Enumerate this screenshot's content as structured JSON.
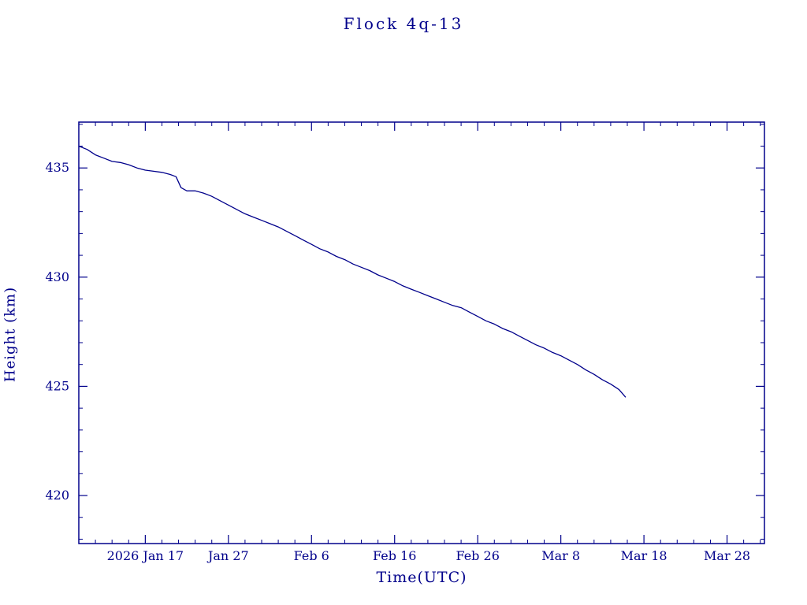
{
  "chart_data": {
    "type": "line",
    "title": "Flock 4q-13",
    "xlabel": "Time(UTC)",
    "ylabel": "Height (km)",
    "grid": false,
    "legend": "none",
    "colors": {
      "line": "#00008b",
      "text": "#00008b",
      "frame": "#00008b",
      "background": "#ffffff"
    },
    "x_axis": {
      "tick_labels": [
        "2026 Jan 17",
        "Jan 27",
        "Feb 6",
        "Feb 16",
        "Feb 26",
        "Mar 8",
        "Mar 18",
        "Mar 28"
      ],
      "tick_days": [
        8,
        18,
        28,
        38,
        48,
        58,
        68,
        78
      ],
      "domain_days": [
        0,
        82.5
      ],
      "x_day0_date": "2026 Jan 9",
      "minor_tick_step_days": 2
    },
    "y_axis": {
      "tick_labels": [
        "420",
        "425",
        "430",
        "435"
      ],
      "tick_values": [
        420,
        425,
        430,
        435
      ],
      "domain": [
        417.8,
        437.1
      ],
      "minor_tick_step": 1
    },
    "series": [
      {
        "name": "Flock 4q-13 height",
        "points": [
          [
            0,
            436.0
          ],
          [
            1,
            435.85
          ],
          [
            2,
            435.6
          ],
          [
            3,
            435.45
          ],
          [
            4,
            435.3
          ],
          [
            5,
            435.25
          ],
          [
            6,
            435.15
          ],
          [
            7,
            435.0
          ],
          [
            8,
            434.9
          ],
          [
            9,
            434.85
          ],
          [
            10,
            434.8
          ],
          [
            11,
            434.7
          ],
          [
            11.7,
            434.6
          ],
          [
            12.3,
            434.1
          ],
          [
            13,
            433.95
          ],
          [
            14,
            433.95
          ],
          [
            15,
            433.85
          ],
          [
            16,
            433.7
          ],
          [
            17,
            433.5
          ],
          [
            18,
            433.3
          ],
          [
            19,
            433.1
          ],
          [
            20,
            432.9
          ],
          [
            21,
            432.75
          ],
          [
            22,
            432.6
          ],
          [
            23,
            432.45
          ],
          [
            24,
            432.3
          ],
          [
            25,
            432.1
          ],
          [
            26,
            431.9
          ],
          [
            27,
            431.7
          ],
          [
            28,
            431.5
          ],
          [
            29,
            431.3
          ],
          [
            30,
            431.15
          ],
          [
            31,
            430.95
          ],
          [
            32,
            430.8
          ],
          [
            33,
            430.6
          ],
          [
            34,
            430.45
          ],
          [
            35,
            430.3
          ],
          [
            36,
            430.1
          ],
          [
            37,
            429.95
          ],
          [
            38,
            429.8
          ],
          [
            39,
            429.6
          ],
          [
            40,
            429.45
          ],
          [
            41,
            429.3
          ],
          [
            42,
            429.15
          ],
          [
            43,
            429.0
          ],
          [
            44,
            428.85
          ],
          [
            45,
            428.7
          ],
          [
            46,
            428.6
          ],
          [
            47,
            428.4
          ],
          [
            48,
            428.2
          ],
          [
            49,
            428.0
          ],
          [
            50,
            427.85
          ],
          [
            51,
            427.65
          ],
          [
            52,
            427.5
          ],
          [
            53,
            427.3
          ],
          [
            54,
            427.1
          ],
          [
            55,
            426.9
          ],
          [
            56,
            426.75
          ],
          [
            57,
            426.55
          ],
          [
            58,
            426.4
          ],
          [
            59,
            426.2
          ],
          [
            60,
            426.0
          ],
          [
            61,
            425.75
          ],
          [
            62,
            425.55
          ],
          [
            63,
            425.3
          ],
          [
            64,
            425.1
          ],
          [
            65,
            424.85
          ],
          [
            65.8,
            424.5
          ]
        ]
      }
    ]
  }
}
